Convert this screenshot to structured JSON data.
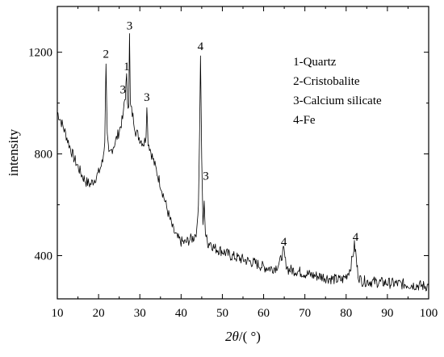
{
  "chart_data": {
    "type": "line",
    "xlabel_main": "2θ",
    "xlabel_unit": "/(  °)",
    "ylabel": "intensity",
    "xlim": [
      10,
      100
    ],
    "ylim": [
      230,
      1380
    ],
    "x_ticks": [
      10,
      20,
      30,
      40,
      50,
      60,
      70,
      80,
      90,
      100
    ],
    "y_ticks": [
      400,
      800,
      1200
    ],
    "grid": false,
    "legend_position": "top-right",
    "legend": [
      "1-Quartz",
      "2-Cristobalite",
      "3-Calcium silicate",
      "4-Fe"
    ],
    "series": [
      {
        "color": "#000000",
        "x": [
          10,
          11,
          12,
          13,
          14,
          15,
          16,
          17,
          18,
          19,
          20,
          21,
          21.5,
          21.8,
          22.1,
          22.5,
          23,
          24,
          25,
          26,
          26.2,
          26.5,
          26.8,
          27,
          27.3,
          27.5,
          27.7,
          28,
          28.5,
          29,
          30,
          31,
          31.5,
          31.7,
          32,
          32.5,
          33,
          34,
          35,
          36,
          37,
          38,
          39,
          40,
          41,
          42,
          43,
          43.8,
          44.2,
          44.5,
          44.7,
          45,
          45.3,
          45.6,
          45.9,
          46.2,
          46.6,
          47,
          48,
          50,
          52,
          55,
          58,
          60,
          62,
          63,
          64,
          64.5,
          64.9,
          65.3,
          66,
          68,
          70,
          72,
          74,
          76,
          78,
          79,
          80,
          81,
          81.5,
          82,
          82.3,
          82.6,
          83,
          83.5,
          84,
          86,
          88,
          90,
          92,
          94,
          96,
          98,
          99.5,
          100
        ],
        "y": [
          965,
          925,
          880,
          830,
          785,
          750,
          715,
          690,
          680,
          700,
          725,
          770,
          850,
          1160,
          870,
          790,
          810,
          845,
          890,
          950,
          1000,
          1030,
          1110,
          1010,
          990,
          1270,
          990,
          970,
          935,
          890,
          860,
          840,
          870,
          990,
          850,
          820,
          790,
          735,
          680,
          620,
          560,
          505,
          470,
          455,
          450,
          462,
          470,
          500,
          600,
          900,
          1190,
          780,
          520,
          610,
          490,
          465,
          445,
          455,
          430,
          418,
          400,
          385,
          370,
          355,
          350,
          355,
          375,
          405,
          420,
          375,
          345,
          340,
          330,
          322,
          318,
          310,
          305,
          305,
          320,
          350,
          390,
          440,
          415,
          360,
          320,
          305,
          300,
          298,
          295,
          293,
          290,
          288,
          285,
          282,
          280,
          282
        ]
      }
    ],
    "peak_labels": [
      {
        "x": 21.8,
        "y": 1160,
        "text": "2"
      },
      {
        "x": 25.9,
        "y": 1020,
        "text": "3"
      },
      {
        "x": 26.8,
        "y": 1110,
        "text": "1"
      },
      {
        "x": 27.5,
        "y": 1270,
        "text": "3"
      },
      {
        "x": 31.7,
        "y": 990,
        "text": "3"
      },
      {
        "x": 44.7,
        "y": 1190,
        "text": "4"
      },
      {
        "x": 46.0,
        "y": 680,
        "text": "3"
      },
      {
        "x": 64.9,
        "y": 420,
        "text": "4"
      },
      {
        "x": 82.3,
        "y": 440,
        "text": "4"
      }
    ]
  }
}
